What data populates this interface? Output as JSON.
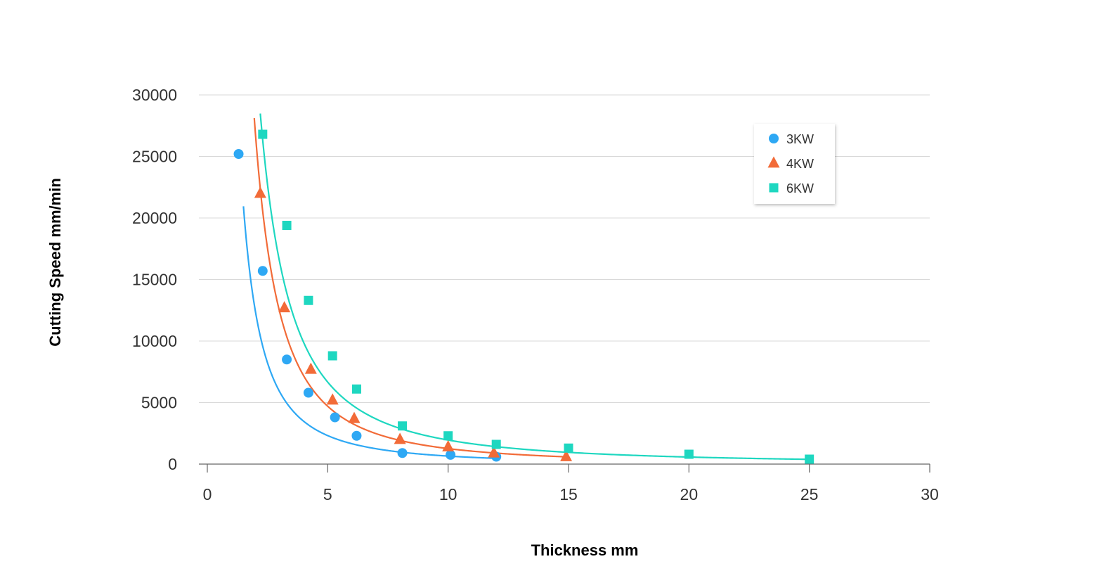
{
  "chart_data": {
    "type": "scatter",
    "xlabel": "Thickness mm",
    "ylabel": "Cutting Speed mm/min",
    "xlim": [
      0,
      30
    ],
    "ylim": [
      0,
      30000
    ],
    "x_ticks": [
      0,
      5,
      10,
      15,
      20,
      25,
      30
    ],
    "y_ticks": [
      0,
      5000,
      10000,
      15000,
      20000,
      25000,
      30000
    ],
    "grid": "horizontal",
    "legend_position": "top-right",
    "trendline": "power",
    "series": [
      {
        "name": "3KW",
        "marker": "circle",
        "color": "#2ea8f4",
        "points": [
          {
            "x": 1.3,
            "y": 25200
          },
          {
            "x": 2.3,
            "y": 15700
          },
          {
            "x": 3.3,
            "y": 8500
          },
          {
            "x": 4.2,
            "y": 5800
          },
          {
            "x": 5.3,
            "y": 3800
          },
          {
            "x": 6.2,
            "y": 2300
          },
          {
            "x": 8.1,
            "y": 900
          },
          {
            "x": 10.1,
            "y": 750
          },
          {
            "x": 12.0,
            "y": 600
          }
        ],
        "trend": {
          "a": 44000,
          "b": 1.83,
          "x_start": 1.5,
          "x_end": 12.0
        }
      },
      {
        "name": "4KW",
        "marker": "triangle",
        "color": "#f26b38",
        "points": [
          {
            "x": 2.2,
            "y": 22000
          },
          {
            "x": 3.2,
            "y": 12700
          },
          {
            "x": 4.3,
            "y": 7700
          },
          {
            "x": 5.2,
            "y": 5200
          },
          {
            "x": 6.1,
            "y": 3700
          },
          {
            "x": 8.0,
            "y": 2000
          },
          {
            "x": 10.0,
            "y": 1400
          },
          {
            "x": 11.9,
            "y": 900
          },
          {
            "x": 14.9,
            "y": 600
          }
        ],
        "trend": {
          "a": 100000,
          "b": 1.9,
          "x_start": 1.95,
          "x_end": 14.9
        }
      },
      {
        "name": "6KW",
        "marker": "square",
        "color": "#1ed7c0",
        "points": [
          {
            "x": 2.3,
            "y": 26800
          },
          {
            "x": 3.3,
            "y": 19400
          },
          {
            "x": 4.2,
            "y": 13300
          },
          {
            "x": 5.2,
            "y": 8800
          },
          {
            "x": 6.2,
            "y": 6100
          },
          {
            "x": 8.1,
            "y": 3100
          },
          {
            "x": 10.0,
            "y": 2300
          },
          {
            "x": 12.0,
            "y": 1600
          },
          {
            "x": 15.0,
            "y": 1300
          },
          {
            "x": 20.0,
            "y": 800
          },
          {
            "x": 25.0,
            "y": 400
          }
        ],
        "trend": {
          "a": 115000,
          "b": 1.77,
          "x_start": 2.2,
          "x_end": 25.0
        }
      }
    ]
  }
}
